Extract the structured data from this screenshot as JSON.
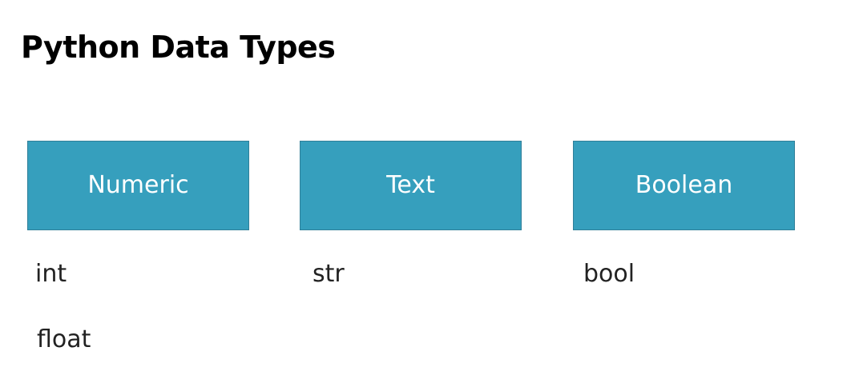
{
  "title": "Python Data Types",
  "categories": [
    {
      "label": "Numeric",
      "types": [
        "int",
        "float"
      ]
    },
    {
      "label": "Text",
      "types": [
        "str"
      ]
    },
    {
      "label": "Boolean",
      "types": [
        "bool"
      ]
    }
  ],
  "colors": {
    "box_fill": "#369fbd",
    "box_text": "#ffffff",
    "title_text": "#000000",
    "item_text": "#222222"
  }
}
